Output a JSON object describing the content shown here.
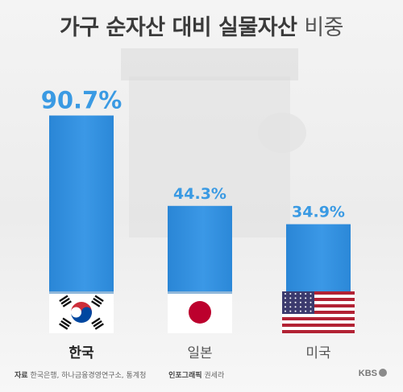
{
  "title": {
    "main": "가구 순자산 대비 실물자산",
    "sub": "비중"
  },
  "chart_data": {
    "type": "bar",
    "categories": [
      "한국",
      "일본",
      "미국"
    ],
    "values": [
      90.7,
      44.3,
      34.9
    ],
    "value_labels": [
      "90.7%",
      "44.3%",
      "34.9%"
    ],
    "title": "가구 순자산 대비 실물자산 비중",
    "xlabel": "",
    "ylabel": "",
    "ylim": [
      0,
      100
    ],
    "grid": false,
    "highlight_category": "한국",
    "bar_color": "#2f8fdc",
    "label_color": "#3a9ae3",
    "flags": [
      "south-korea-flag",
      "japan-flag",
      "usa-flag"
    ]
  },
  "footer": {
    "source_label": "자료",
    "source_text": "한국은행, 하나금융경영연구소, 통계청",
    "credit_label": "인포그래픽",
    "credit_text": "권세라",
    "brand": "KBS"
  }
}
